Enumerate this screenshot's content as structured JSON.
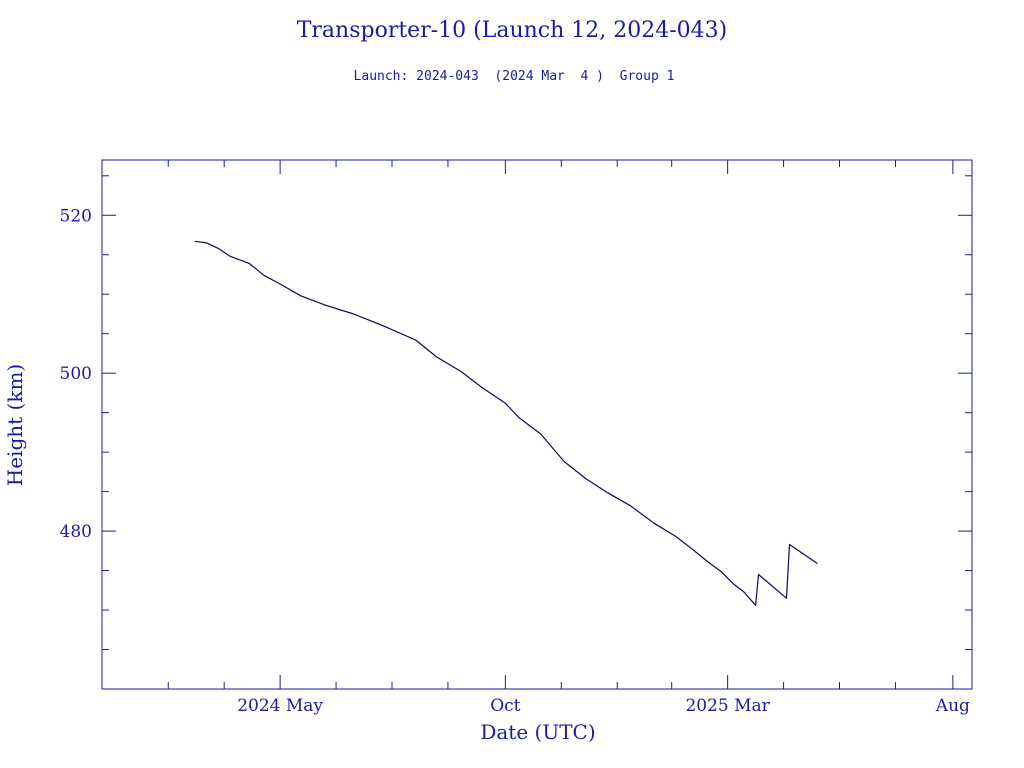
{
  "colors": {
    "axis": "#1a1aa6",
    "line": "#0a0a5a",
    "text": "#1a1aa6",
    "background": "#ffffff"
  },
  "chart_data": {
    "type": "line",
    "title": "Transporter-10 (Launch 12, 2024-043)",
    "subtitle": "Launch: 2024-043  (2024 Mar  4 )  Group 1",
    "xlabel": "Date (UTC)",
    "ylabel": "Height (km)",
    "x_axis_type": "date",
    "xlim": [
      "2024-01-01",
      "2025-08-14"
    ],
    "ylim": [
      460,
      527
    ],
    "x_ticks": [
      {
        "date": "2024-05-01",
        "label": "2024 May"
      },
      {
        "date": "2024-10-01",
        "label": "Oct"
      },
      {
        "date": "2025-03-01",
        "label": "2025 Mar"
      },
      {
        "date": "2025-08-01",
        "label": "Aug"
      }
    ],
    "y_ticks": [
      480,
      500,
      520
    ],
    "grid": false,
    "series": [
      {
        "points": [
          [
            "2024-03-04",
            516.7
          ],
          [
            "2024-03-12",
            516.5
          ],
          [
            "2024-03-20",
            515.8
          ],
          [
            "2024-03-28",
            514.8
          ],
          [
            "2024-04-10",
            513.9
          ],
          [
            "2024-04-20",
            512.4
          ],
          [
            "2024-05-01",
            511.3
          ],
          [
            "2024-05-15",
            509.8
          ],
          [
            "2024-06-01",
            508.6
          ],
          [
            "2024-06-20",
            507.5
          ],
          [
            "2024-07-10",
            506.0
          ],
          [
            "2024-08-01",
            504.2
          ],
          [
            "2024-08-15",
            502.1
          ],
          [
            "2024-09-01",
            500.2
          ],
          [
            "2024-09-15",
            498.2
          ],
          [
            "2024-10-01",
            496.2
          ],
          [
            "2024-10-10",
            494.4
          ],
          [
            "2024-10-25",
            492.3
          ],
          [
            "2024-11-10",
            488.8
          ],
          [
            "2024-11-25",
            486.6
          ],
          [
            "2024-12-10",
            484.8
          ],
          [
            "2024-12-25",
            483.2
          ],
          [
            "2025-01-10",
            481.0
          ],
          [
            "2025-01-25",
            479.3
          ],
          [
            "2025-02-05",
            477.7
          ],
          [
            "2025-02-15",
            476.2
          ],
          [
            "2025-02-25",
            474.8
          ],
          [
            "2025-03-05",
            473.3
          ],
          [
            "2025-03-12",
            472.3
          ],
          [
            "2025-03-20",
            470.6
          ],
          [
            "2025-03-22",
            474.5
          ],
          [
            "2025-04-10",
            471.5
          ],
          [
            "2025-04-12",
            478.3
          ],
          [
            "2025-05-01",
            475.9
          ]
        ]
      }
    ]
  }
}
